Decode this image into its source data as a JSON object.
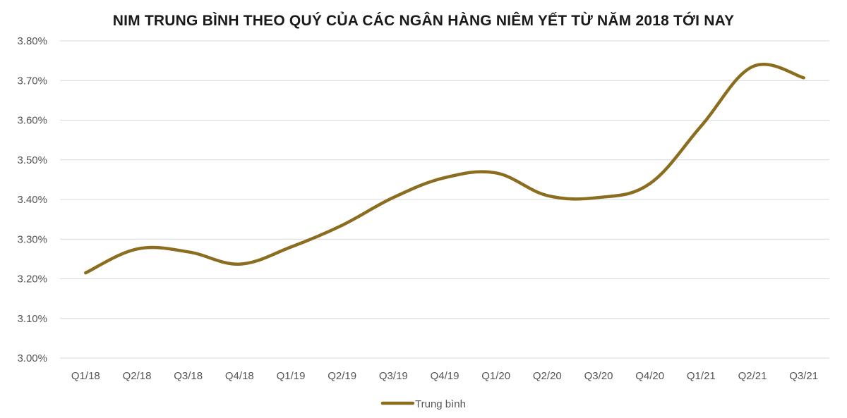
{
  "chart_data": {
    "type": "line",
    "title": "NIM TRUNG BÌNH THEO QUÝ CỦA CÁC NGÂN HÀNG NIÊM YẾT TỪ NĂM 2018 TỚI NAY",
    "categories": [
      "Q1/18",
      "Q2/18",
      "Q3/18",
      "Q4/18",
      "Q1/19",
      "Q2/19",
      "Q3/19",
      "Q4/19",
      "Q1/20",
      "Q2/20",
      "Q3/20",
      "Q4/20",
      "Q1/21",
      "Q2/21",
      "Q3/21"
    ],
    "series": [
      {
        "name": "Trung bình",
        "values": [
          3.215,
          3.275,
          3.268,
          3.237,
          3.28,
          3.335,
          3.405,
          3.455,
          3.467,
          3.41,
          3.405,
          3.44,
          3.585,
          3.735,
          3.707
        ],
        "color": "#8a6d1e"
      }
    ],
    "y_tick_labels": [
      "3.00%",
      "3.10%",
      "3.20%",
      "3.30%",
      "3.40%",
      "3.50%",
      "3.60%",
      "3.70%",
      "3.80%"
    ],
    "ylim": [
      3.0,
      3.8
    ],
    "y_tick_step": 0.1,
    "grid": "horizontal",
    "legend_position": "bottom",
    "xlabel": "",
    "ylabel": ""
  }
}
